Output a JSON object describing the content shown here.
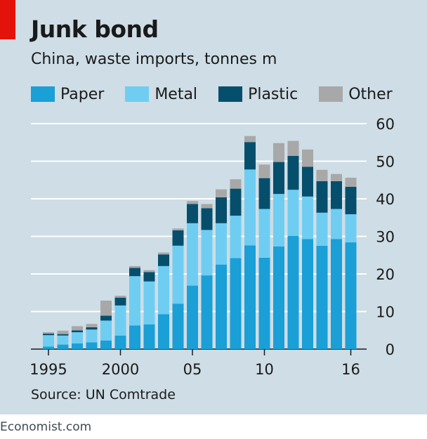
{
  "title": "Junk bond",
  "subtitle": "China, waste imports, tonnes m",
  "source": "Source: UN Comtrade",
  "brand": "Economist.com",
  "colors": {
    "Paper": "#1a9fd6",
    "Metal": "#6fcdf2",
    "Plastic": "#064f6c",
    "Other": "#a8a8a8",
    "background": "#cedde6",
    "accent": "#e3120b"
  },
  "chart_data": {
    "type": "bar",
    "stacked": true,
    "title": "Junk bond",
    "subtitle": "China, waste imports, tonnes m",
    "xlabel": "",
    "ylabel": "",
    "ylim": [
      0,
      60
    ],
    "yticks": [
      "0",
      "10",
      "20",
      "30",
      "40",
      "50",
      "60"
    ],
    "grid": true,
    "legend_position": "top",
    "categories": [
      "1995",
      "1996",
      "1997",
      "1998",
      "1999",
      "2000",
      "2001",
      "2002",
      "2003",
      "2004",
      "2005",
      "2006",
      "2007",
      "2008",
      "2009",
      "2010",
      "2011",
      "2012",
      "2013",
      "2014",
      "2015",
      "2016"
    ],
    "x_tick_labels": [
      {
        "category": "1995",
        "label": "1995"
      },
      {
        "category": "2000",
        "label": "2000"
      },
      {
        "category": "2005",
        "label": "05"
      },
      {
        "category": "2010",
        "label": "10"
      },
      {
        "category": "2016",
        "label": "16"
      }
    ],
    "series": [
      {
        "name": "Paper",
        "values": [
          0.7,
          1.2,
          1.5,
          1.8,
          2.3,
          3.6,
          6.3,
          6.6,
          9.3,
          12.1,
          16.9,
          19.6,
          22.5,
          24.2,
          27.6,
          24.3,
          27.3,
          30.1,
          29.3,
          27.5,
          29.3,
          28.4
        ]
      },
      {
        "name": "Metal",
        "values": [
          3.0,
          2.4,
          3.0,
          3.4,
          5.3,
          8.0,
          13.1,
          11.4,
          12.8,
          15.4,
          16.6,
          12.1,
          11.0,
          11.3,
          20.2,
          13.0,
          14.0,
          12.3,
          11.3,
          8.8,
          8.0,
          7.5
        ]
      },
      {
        "name": "Plastic",
        "values": [
          0.4,
          0.4,
          0.5,
          0.6,
          1.3,
          2.1,
          2.2,
          2.5,
          3.1,
          4.1,
          5.1,
          5.8,
          6.9,
          7.2,
          7.3,
          8.2,
          8.5,
          9.0,
          7.9,
          8.4,
          7.4,
          7.3
        ]
      },
      {
        "name": "Other",
        "values": [
          0.4,
          0.9,
          1.1,
          0.9,
          4.0,
          0.5,
          0.5,
          0.5,
          0.5,
          0.5,
          0.8,
          1.1,
          2.1,
          2.5,
          1.6,
          3.6,
          5.0,
          4.0,
          4.6,
          3.0,
          1.9,
          2.4
        ]
      }
    ]
  }
}
